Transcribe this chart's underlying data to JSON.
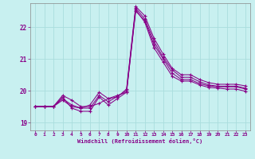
{
  "title": "",
  "xlabel": "Windchill (Refroidissement éolien,°C)",
  "ylabel": "",
  "bg_color": "#c8f0f0",
  "line_color": "#880088",
  "grid_color": "#aadddd",
  "xlim": [
    -0.5,
    23.5
  ],
  "ylim": [
    18.75,
    22.75
  ],
  "yticks": [
    19,
    20,
    21,
    22
  ],
  "xticks": [
    0,
    1,
    2,
    3,
    4,
    5,
    6,
    7,
    8,
    9,
    10,
    11,
    12,
    13,
    14,
    15,
    16,
    17,
    18,
    19,
    20,
    21,
    22,
    23
  ],
  "series": [
    [
      19.5,
      19.5,
      19.5,
      19.85,
      19.7,
      19.5,
      19.5,
      19.6,
      19.75,
      19.8,
      20.05,
      22.65,
      22.35,
      21.65,
      21.15,
      20.7,
      20.5,
      20.5,
      20.35,
      20.25,
      20.2,
      20.2,
      20.2,
      20.15
    ],
    [
      19.5,
      19.5,
      19.5,
      19.75,
      19.55,
      19.45,
      19.55,
      19.95,
      19.75,
      19.85,
      19.95,
      22.5,
      22.2,
      21.45,
      21.0,
      20.55,
      20.35,
      20.35,
      20.22,
      20.15,
      20.12,
      20.12,
      20.12,
      20.05
    ],
    [
      19.5,
      19.5,
      19.5,
      19.8,
      19.45,
      19.35,
      19.35,
      19.8,
      19.55,
      19.75,
      19.95,
      22.55,
      22.15,
      21.35,
      20.9,
      20.45,
      20.3,
      20.3,
      20.18,
      20.1,
      20.08,
      20.05,
      20.05,
      19.98
    ],
    [
      19.5,
      19.5,
      19.5,
      19.7,
      19.5,
      19.45,
      19.45,
      19.85,
      19.65,
      19.82,
      20.0,
      22.6,
      22.25,
      21.55,
      21.05,
      20.65,
      20.42,
      20.42,
      20.28,
      20.18,
      20.14,
      20.14,
      20.14,
      20.08
    ]
  ]
}
